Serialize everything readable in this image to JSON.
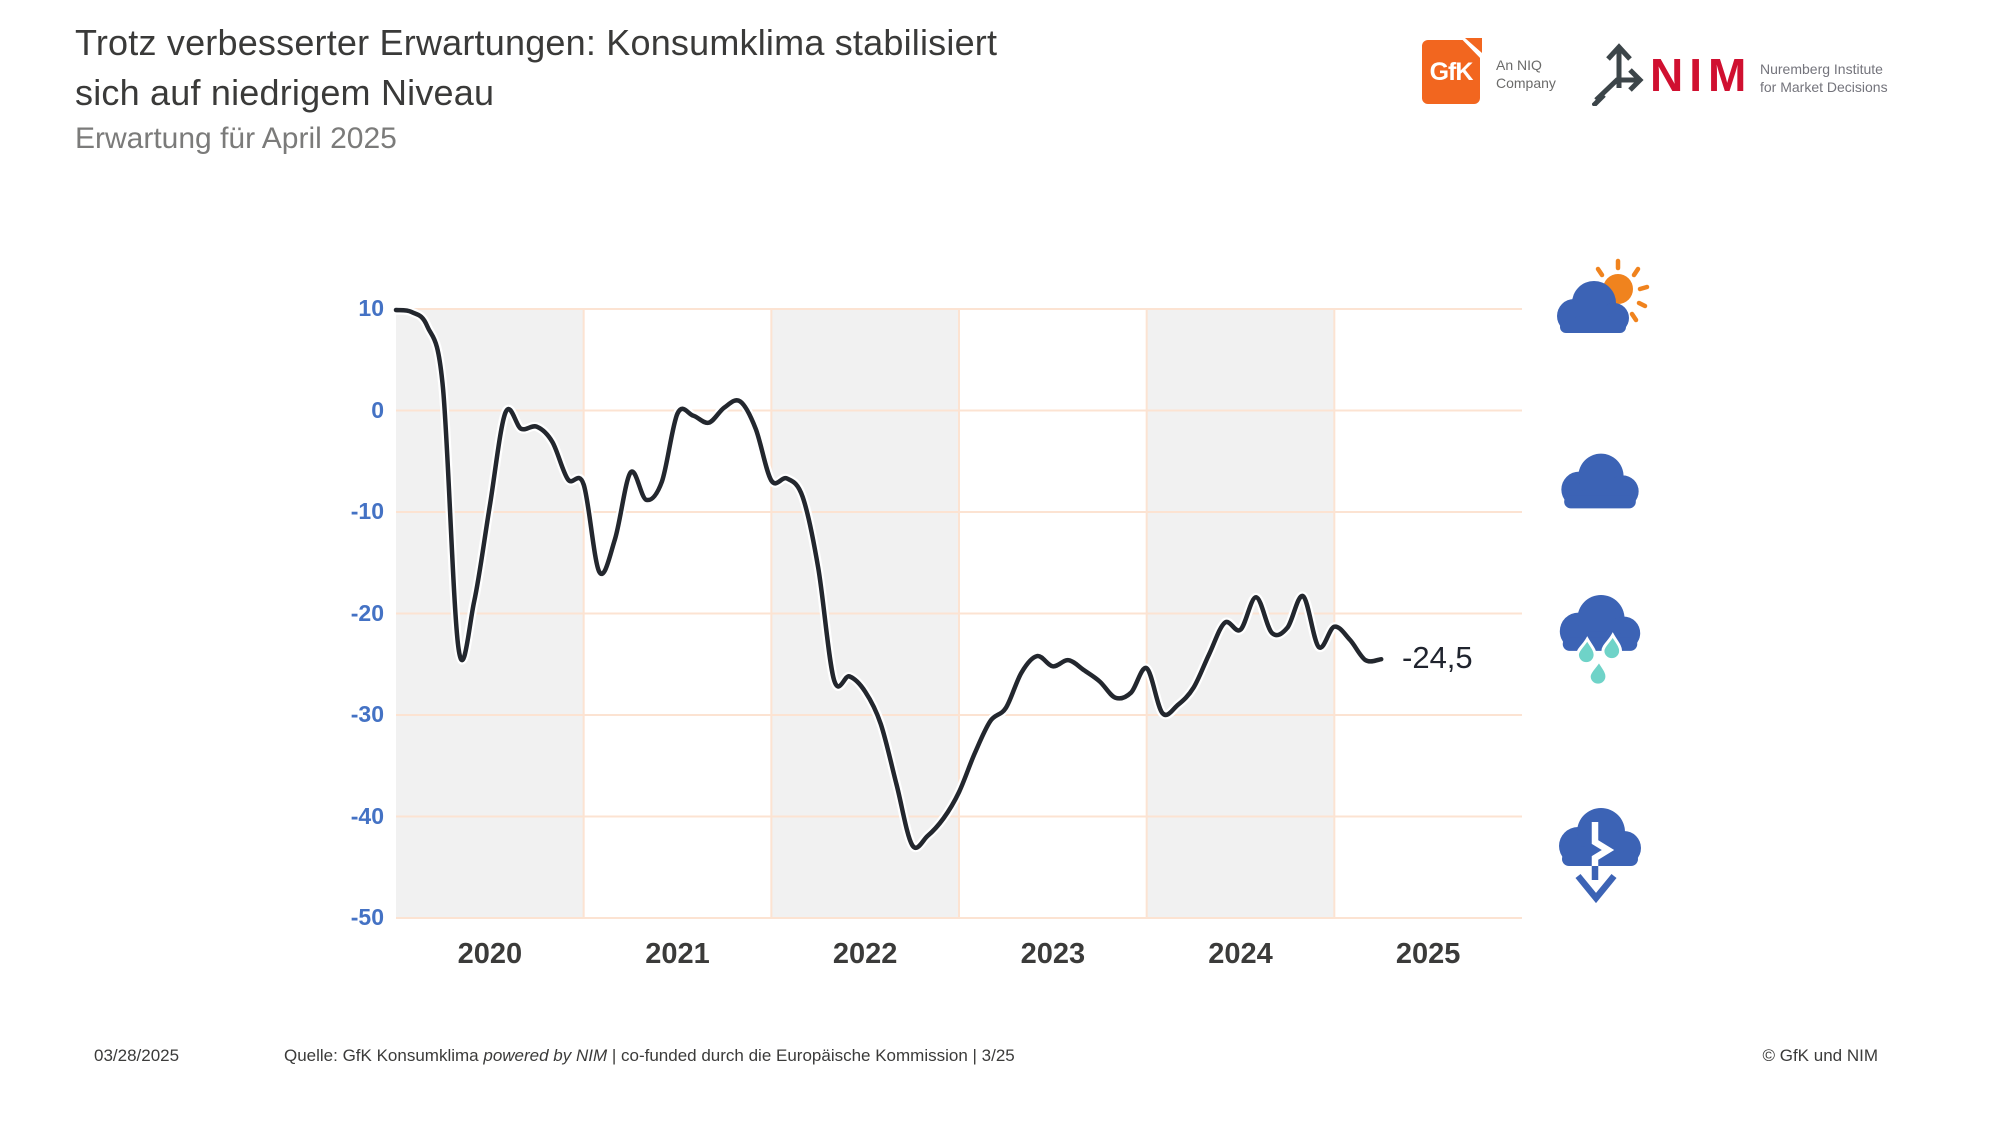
{
  "header": {
    "title_line1": "Trotz verbesserter Erwartungen: Konsumklima stabilisiert",
    "title_line2": "sich auf niedrigem Niveau",
    "subtitle": "Erwartung für April 2025"
  },
  "logos": {
    "gfk": {
      "label": "GfK",
      "tagline_line1": "An NIQ",
      "tagline_line2": "Company",
      "orange": "#f2661f"
    },
    "nim": {
      "label": "NIM",
      "tagline_line1": "Nuremberg Institute",
      "tagline_line2": "for Market Decisions",
      "red": "#d01030"
    }
  },
  "chart_data": {
    "type": "line",
    "series_name": "GfK Konsumklima",
    "x": [
      "2020-01",
      "2020-02",
      "2020-03",
      "2020-04",
      "2020-05",
      "2020-06",
      "2020-07",
      "2020-08",
      "2020-09",
      "2020-10",
      "2020-11",
      "2020-12",
      "2021-01",
      "2021-02",
      "2021-03",
      "2021-04",
      "2021-05",
      "2021-06",
      "2021-07",
      "2021-08",
      "2021-09",
      "2021-10",
      "2021-11",
      "2021-12",
      "2022-01",
      "2022-02",
      "2022-03",
      "2022-04",
      "2022-05",
      "2022-06",
      "2022-07",
      "2022-08",
      "2022-09",
      "2022-10",
      "2022-11",
      "2022-12",
      "2023-01",
      "2023-02",
      "2023-03",
      "2023-04",
      "2023-05",
      "2023-06",
      "2023-07",
      "2023-08",
      "2023-09",
      "2023-10",
      "2023-11",
      "2023-12",
      "2024-01",
      "2024-02",
      "2024-03",
      "2024-04",
      "2024-05",
      "2024-06",
      "2024-07",
      "2024-08",
      "2024-09",
      "2024-10",
      "2024-11",
      "2024-12",
      "2025-01",
      "2025-02",
      "2025-03",
      "2025-04"
    ],
    "values": [
      9.9,
      9.7,
      8.3,
      2.3,
      -23.5,
      -18.8,
      -9.4,
      -0.2,
      -1.8,
      -1.6,
      -3.1,
      -6.8,
      -7.3,
      -15.9,
      -12.7,
      -6.1,
      -8.8,
      -7.0,
      -0.3,
      -0.5,
      -1.2,
      0.3,
      0.9,
      -1.8,
      -6.9,
      -6.7,
      -8.5,
      -15.5,
      -26.5,
      -26.2,
      -27.7,
      -30.9,
      -36.8,
      -42.8,
      -41.9,
      -40.2,
      -37.6,
      -33.8,
      -30.6,
      -29.3,
      -25.8,
      -24.2,
      -25.2,
      -24.6,
      -25.6,
      -26.7,
      -28.3,
      -27.8,
      -25.4,
      -29.8,
      -29.0,
      -27.3,
      -24.0,
      -20.9,
      -21.6,
      -18.4,
      -21.9,
      -21.4,
      -18.3,
      -23.3,
      -21.3,
      -22.6,
      -24.6,
      -24.5
    ],
    "last_value_label": "-24,5",
    "xtick_labels": [
      "2020",
      "2021",
      "2022",
      "2023",
      "2024",
      "2025"
    ],
    "yticks": [
      10,
      0,
      -10,
      -20,
      -30,
      -40,
      -50
    ],
    "ylim": [
      -50,
      10
    ],
    "shaded_year_indices": [
      0,
      2,
      4
    ],
    "grid": true,
    "legend_position": "none",
    "colors": {
      "line": "#23272e",
      "halo": "#ffffff",
      "grid": "#fce3d2",
      "band": "#f1f1f1",
      "ytick": "#4472c4",
      "xtick": "#3b3b3a"
    }
  },
  "weather_icons": {
    "cloud_blue": "#3c63b5",
    "sun_orange": "#f0831e",
    "drop_teal": "#6fd3c8"
  },
  "footer": {
    "date": "03/28/2025",
    "source_prefix": "Quelle: GfK Konsumklima ",
    "source_italic": "powered by NIM",
    "source_suffix": " | co-funded durch die Europäische Kommission | 3/25",
    "copyright": "© GfK und NIM"
  }
}
